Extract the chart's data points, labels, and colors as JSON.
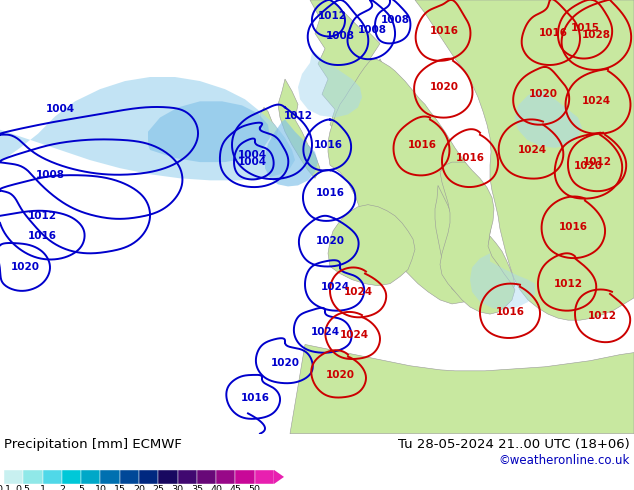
{
  "title_left": "Precipitation [mm] ECMWF",
  "title_right": "Tu 28-05-2024 21..00 UTC (18+06)",
  "credit": "©weatheronline.co.uk",
  "colorbar_levels": [
    "0.1",
    "0.5",
    "1",
    "2",
    "5",
    "10",
    "15",
    "20",
    "25",
    "30",
    "35",
    "40",
    "45",
    "50"
  ],
  "colorbar_colors": [
    "#c8f0f0",
    "#90e8e8",
    "#50d8e8",
    "#00c8d8",
    "#00a8c8",
    "#0070b0",
    "#004898",
    "#002880",
    "#180860",
    "#400870",
    "#680878",
    "#980888",
    "#c80898",
    "#e820b0"
  ],
  "land_color": "#c8e8a0",
  "sea_color": "#c8e8f8",
  "precip_light": "#a8d8f0",
  "precip_medium": "#80c0e8",
  "precip_heavy": "#5090d0",
  "bg_color": "#ffffff",
  "label_fontsize": 9.5,
  "credit_color": "#0000bb",
  "credit_fontsize": 8.5,
  "isobar_blue": "#0000cc",
  "isobar_red": "#cc0000",
  "isobar_lw": 1.4
}
